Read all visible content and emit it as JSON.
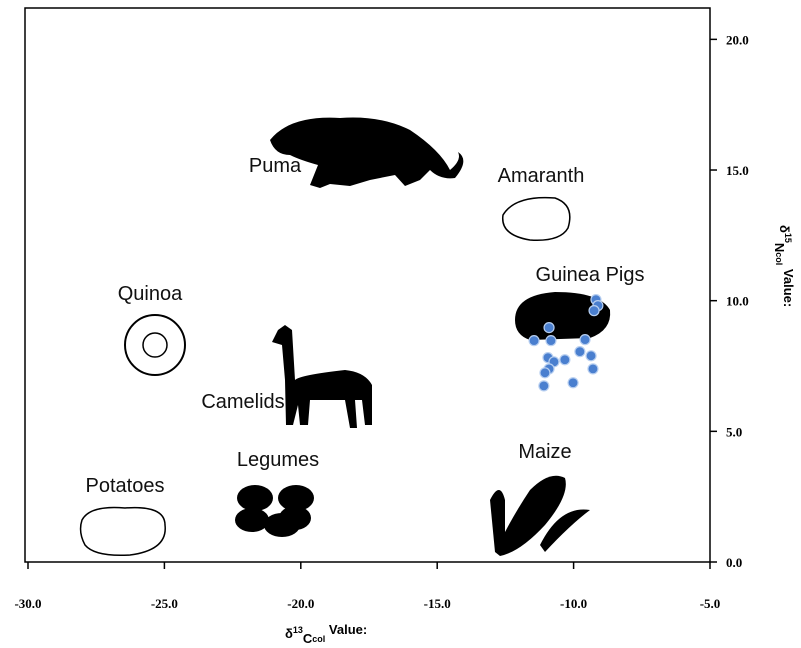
{
  "chart_data": {
    "type": "scatter",
    "xlabel": [
      "δ",
      "13",
      "C",
      "col",
      " Value:"
    ],
    "ylabel": [
      "δ",
      "15",
      "N",
      "col",
      " Value:"
    ],
    "xlim": [
      -30,
      -5
    ],
    "ylim": [
      0,
      21.2
    ],
    "xticks": [
      {
        "value": -30,
        "label": "-30.0"
      },
      {
        "value": -25,
        "label": "-25.0"
      },
      {
        "value": -20,
        "label": "-20.0"
      },
      {
        "value": -15,
        "label": "-15.0"
      },
      {
        "value": -10,
        "label": "-10.0"
      },
      {
        "value": -5,
        "label": "-5.0"
      }
    ],
    "yticks": [
      {
        "value": 0,
        "label": "0.0"
      },
      {
        "value": 5,
        "label": "5.0"
      },
      {
        "value": 10,
        "label": "10.0"
      },
      {
        "value": 15,
        "label": "15.0"
      },
      {
        "value": 20,
        "label": "20.0"
      }
    ],
    "annotations": [
      "Puma",
      "Amaranth",
      "Guinea Pigs",
      "Quinoa",
      "Camelids",
      "Potatoes",
      "Legumes",
      "Maize"
    ],
    "series": [
      {
        "color": "#4a7fcf",
        "x": [
          -9.18,
          -9.11,
          -9.25,
          -10.9,
          -10.83,
          -11.45,
          -9.58,
          -10.94,
          -10.72,
          -10.32,
          -9.77,
          -9.36,
          -10.9,
          -11.05,
          -9.29,
          -11.09,
          -10.02
        ],
        "values": [
          10.04,
          9.81,
          9.62,
          8.97,
          8.47,
          8.47,
          8.51,
          7.82,
          7.66,
          7.74,
          8.05,
          7.89,
          7.39,
          7.24,
          7.39,
          6.74,
          6.86
        ]
      }
    ]
  }
}
